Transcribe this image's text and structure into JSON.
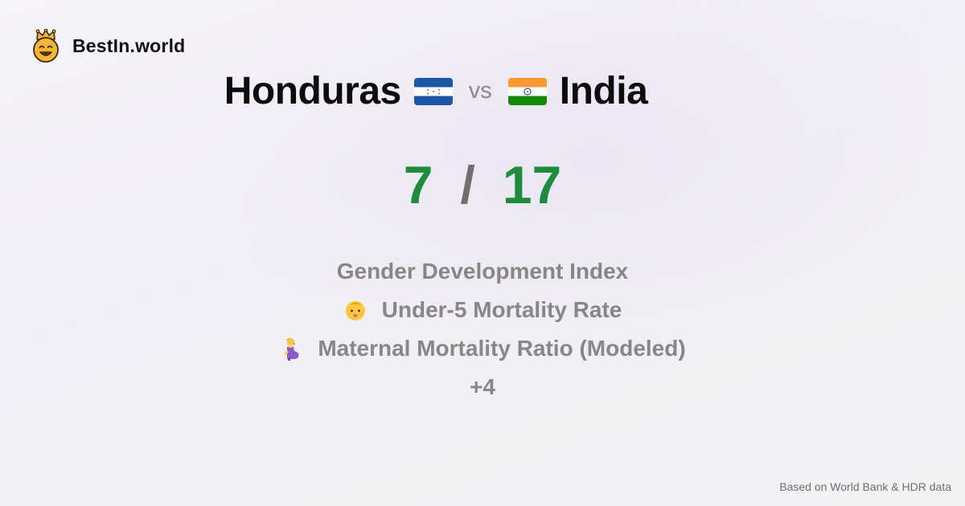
{
  "brand": {
    "name": "BestIn.world",
    "logo_icon": "crowned-smiley-icon"
  },
  "comparison": {
    "left_country": "Honduras",
    "right_country": "India",
    "vs_label": "vs",
    "left_flag_icon": "honduras-flag-icon",
    "right_flag_icon": "india-flag-icon"
  },
  "scores": {
    "left": "7",
    "separator": "/",
    "right": "17"
  },
  "metrics": [
    {
      "label": "Gender Development Index",
      "icon": ""
    },
    {
      "label": "Under-5 Mortality Rate",
      "icon": "baby-face-icon"
    },
    {
      "label": "Maternal Mortality Ratio (Modeled)",
      "icon": "pregnant-woman-icon"
    }
  ],
  "more_count": "+4",
  "footer": {
    "source": "Based on World Bank & HDR data"
  },
  "colors": {
    "score_green": "#1d8c3f",
    "metric_gray": "#878787",
    "honduras_blue": "#1c57a6",
    "india_saffron": "#ff9933",
    "india_green": "#138808"
  }
}
